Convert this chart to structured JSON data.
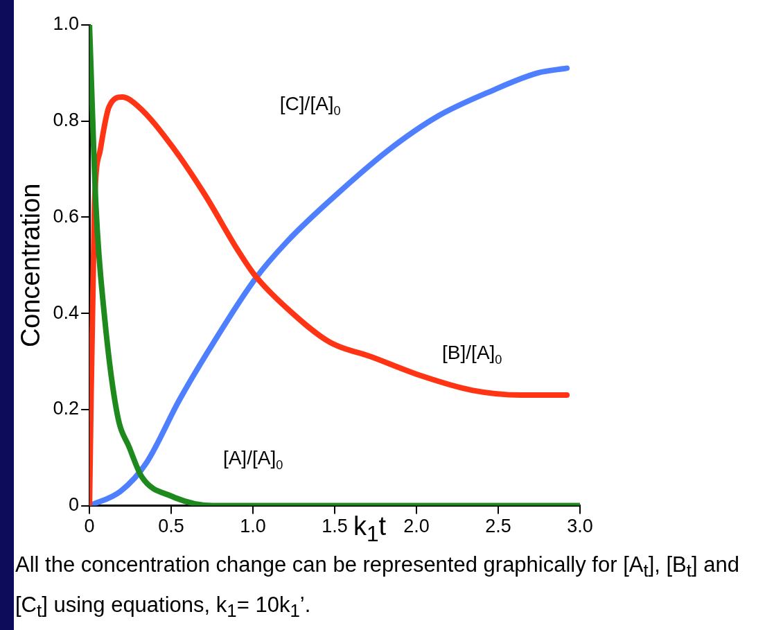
{
  "chart_data": {
    "type": "line",
    "xlabel": "k$_{1}$t",
    "ylabel": "Concentration",
    "xlim": [
      0,
      3
    ],
    "ylim": [
      0,
      1
    ],
    "xticks": [
      0,
      0.5,
      {
        "value": 1,
        "label": "1.0"
      },
      1.5,
      {
        "value": 2,
        "label": "2.0"
      },
      2.5,
      {
        "value": 3,
        "label": "3.0"
      }
    ],
    "yticks": [
      0,
      0.2,
      0.4,
      0.6,
      0.8,
      {
        "value": 1,
        "label": "1.0"
      }
    ],
    "grid": false,
    "legend": false,
    "marker": "none",
    "line_style": "solid",
    "series": [
      {
        "name": "[A]/[A]$_{0}$",
        "color": "#1e8a1e",
        "x": [
          0,
          0.04,
          0.09,
          0.17,
          0.245,
          0.32,
          0.5,
          0.75,
          1.0,
          1.5,
          2.0,
          2.5,
          3.0
        ],
        "values": [
          1.0,
          0.62,
          0.4,
          0.19,
          0.12,
          0.06,
          0.02,
          0,
          0,
          0,
          0,
          0,
          0
        ]
      },
      {
        "name": "[B]/[A]$_{0}$",
        "color": "#ff3414",
        "x": [
          0,
          0.03,
          0.066,
          0.12,
          0.2,
          0.3,
          0.5,
          0.7,
          0.91,
          1.01,
          1.21,
          1.47,
          1.72,
          2.03,
          2.34,
          2.64,
          2.92
        ],
        "values": [
          0,
          0.62,
          0.74,
          0.83,
          0.85,
          0.83,
          0.75,
          0.65,
          0.53,
          0.48,
          0.41,
          0.34,
          0.31,
          0.27,
          0.24,
          0.23,
          0.23
        ]
      },
      {
        "name": "[C]/[A]$_{0}$",
        "color": "#4d7fff",
        "x": [
          0,
          0.19,
          0.35,
          0.55,
          0.76,
          1.01,
          1.21,
          1.52,
          1.83,
          2.13,
          2.44,
          2.74,
          2.92
        ],
        "values": [
          0,
          0.03,
          0.09,
          0.22,
          0.34,
          0.47,
          0.55,
          0.65,
          0.74,
          0.81,
          0.86,
          0.9,
          0.91
        ]
      }
    ],
    "annotations": [
      "All the concentration change can be represented graphically for [A$_{t}$], [B$_{t}$] and [C$_{t}$] using equations, k$_{1}$= 10k$_{1}$’."
    ]
  }
}
